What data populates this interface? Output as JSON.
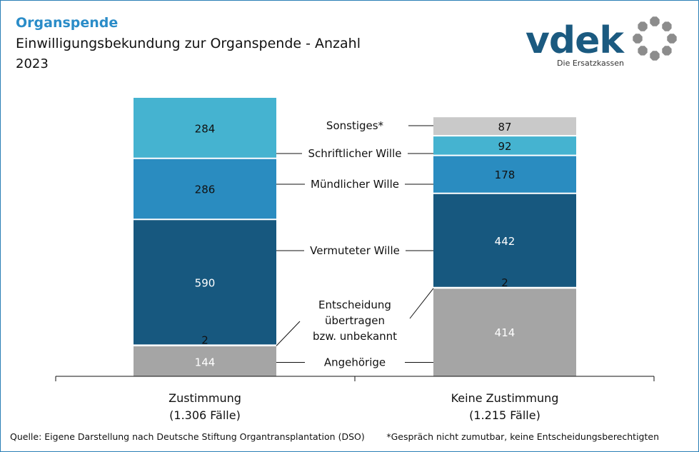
{
  "header": {
    "kicker": "Organspende",
    "title": "Einwilligungsbekundung zur Organspende - Anzahl",
    "year": "2023"
  },
  "logo": {
    "wordmark": "vdek",
    "tagline": "Die Ersatzkassen",
    "brand_color": "#1b5a80",
    "ring_color": "#8c8c8c"
  },
  "chart_data": {
    "type": "bar",
    "stacked": true,
    "title": "Einwilligungsbekundung zur Organspende - Anzahl",
    "categories": [
      "Zustimmung",
      "Keine Zustimmung"
    ],
    "category_sublabels": [
      "(1.306 Fälle)",
      "(1.215 Fälle)"
    ],
    "series": [
      {
        "name": "Angehörige",
        "label": "Angehörige",
        "color": "#a5a5a5",
        "values": [
          144,
          414
        ]
      },
      {
        "name": "Entscheidung übertragen bzw. unbekannt",
        "label": "Entscheidung\nübertragen\nbzw. unbekannt",
        "color": "#a5a5a5",
        "values": [
          2,
          2
        ]
      },
      {
        "name": "Vermuteter Wille",
        "label": "Vermuteter Wille",
        "color": "#17587f",
        "values": [
          590,
          442
        ]
      },
      {
        "name": "Mündlicher Wille",
        "label": "Mündlicher Wille",
        "color": "#2a8cc0",
        "values": [
          286,
          178
        ]
      },
      {
        "name": "Schriftlicher Wille",
        "label": "Schriftlicher Wille",
        "color": "#45b3d0",
        "values": [
          284,
          92
        ]
      },
      {
        "name": "Sonstiges*",
        "label": "Sonstiges*",
        "color": "#c9c9c9",
        "values": [
          0,
          87
        ]
      }
    ],
    "value_label_colors": [
      "#ffffff",
      "#111111",
      "#ffffff",
      "#111111",
      "#111111",
      "#111111"
    ],
    "ylim": [
      0,
      1306
    ],
    "grid": false,
    "legend": "center"
  },
  "footer": {
    "source": "Quelle: Eigene Darstellung nach Deutsche Stiftung Organtransplantation (DSO)",
    "note": "*Gespräch nicht zumutbar, keine Entscheidungsberechtigten"
  }
}
